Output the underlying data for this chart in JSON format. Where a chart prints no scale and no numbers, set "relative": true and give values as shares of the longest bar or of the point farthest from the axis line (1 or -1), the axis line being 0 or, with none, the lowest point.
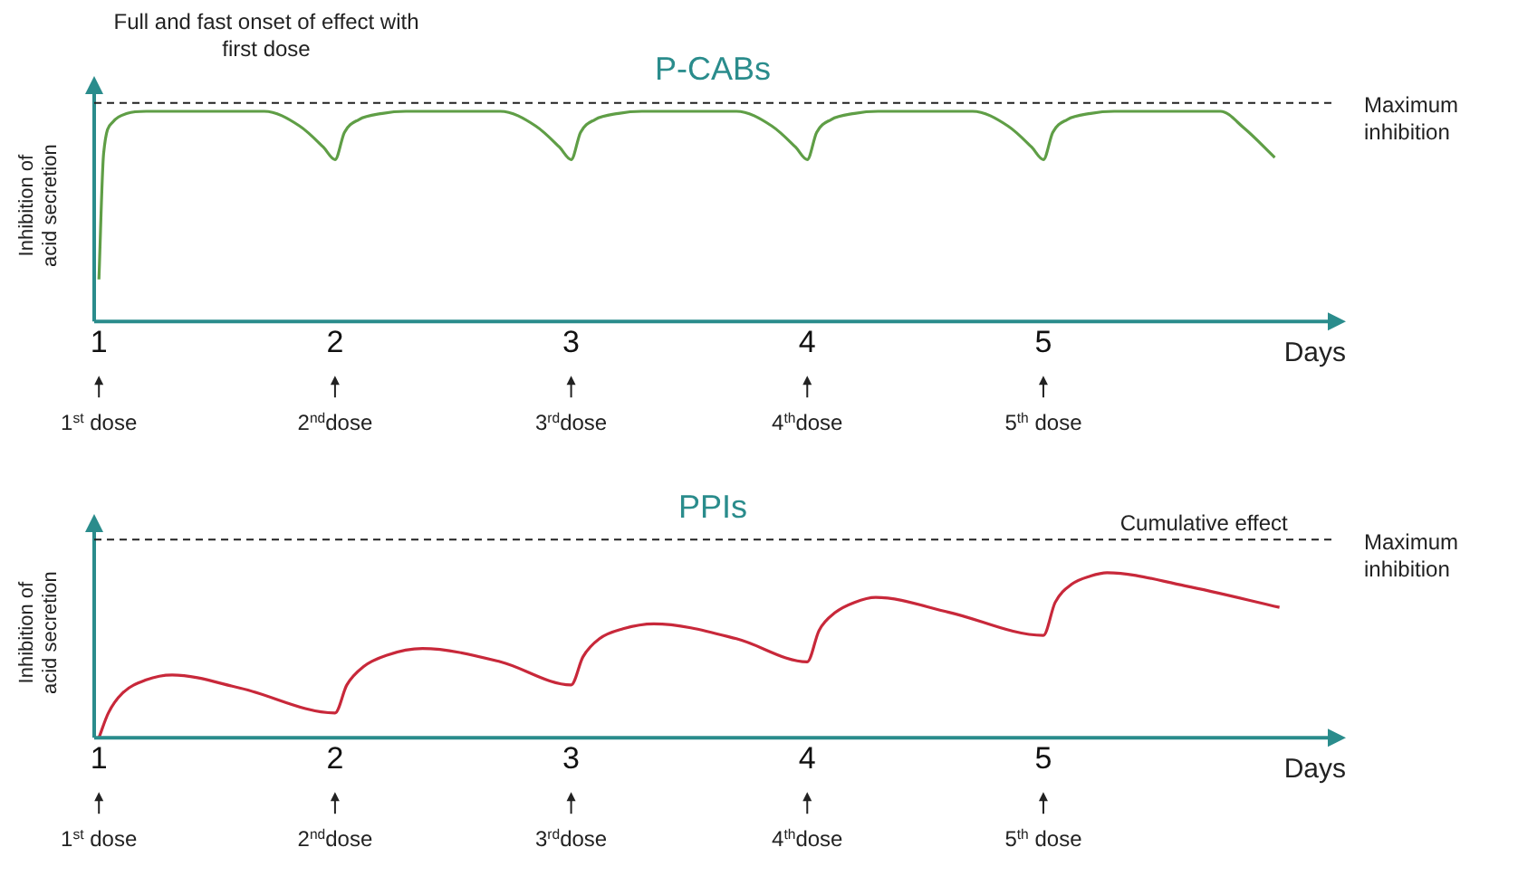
{
  "chart_data": [
    {
      "type": "line",
      "title": "P-CABs",
      "ylabel": "Inhibition of acid secretion",
      "xlabel": "Days",
      "relative": true,
      "xlim": [
        0.98,
        6.22
      ],
      "xticks": [
        1,
        2,
        3,
        4,
        5
      ],
      "grid": false,
      "legend": false,
      "marker": "none",
      "line_style": "solid",
      "series": [
        {
          "color": "#5f9e46",
          "x": [
            1.0,
            1.02,
            1.06,
            1.12,
            1.2,
            1.7,
            1.85,
            1.95,
            2.0,
            2.04,
            2.1,
            2.2,
            2.3,
            2.7,
            2.85,
            2.95,
            3.0,
            3.04,
            3.1,
            3.2,
            3.3,
            3.7,
            3.85,
            3.95,
            4.0,
            4.04,
            4.1,
            4.2,
            4.3,
            4.7,
            4.85,
            4.95,
            5.0,
            5.04,
            5.1,
            5.2,
            5.3,
            5.75,
            5.85,
            5.98
          ],
          "values": [
            0.2,
            0.8,
            0.95,
            0.99,
            1,
            1,
            0.93,
            0.83,
            0.77,
            0.9,
            0.96,
            0.99,
            1,
            1,
            0.93,
            0.83,
            0.77,
            0.9,
            0.96,
            0.99,
            1,
            1,
            0.93,
            0.83,
            0.77,
            0.9,
            0.96,
            0.99,
            1,
            1,
            0.93,
            0.83,
            0.77,
            0.9,
            0.96,
            0.99,
            1,
            1,
            0.92,
            0.78
          ]
        }
      ],
      "ref_lines": [
        {
          "axis": "y",
          "value": 1.04,
          "label": "Maximum inhibition",
          "line_style": "dashed"
        }
      ],
      "annotations": [
        "Full and fast onset of effect with first dose",
        {
          "text": "1$^{st}$ dose",
          "x": 1
        },
        {
          "text": "2$^{nd}$dose",
          "x": 2
        },
        {
          "text": "3$^{rd}$dose",
          "x": 3
        },
        {
          "text": "4$^{th}$dose",
          "x": 4
        },
        {
          "text": "5$^{th}$ dose",
          "x": 5
        }
      ]
    },
    {
      "type": "line",
      "title": "PPIs",
      "ylabel": "Inhibition of acid secretion",
      "xlabel": "Days",
      "relative": true,
      "xlim": [
        0.98,
        6.22
      ],
      "xticks": [
        1,
        2,
        3,
        4,
        5
      ],
      "grid": false,
      "legend": false,
      "marker": "none",
      "line_style": "solid",
      "series": [
        {
          "color": "#c8283a",
          "x": [
            1.0,
            1.04,
            1.1,
            1.2,
            1.31,
            1.6,
            2.0,
            2.05,
            2.12,
            2.22,
            2.37,
            2.7,
            3.0,
            3.05,
            3.12,
            3.22,
            3.35,
            3.7,
            4.0,
            4.05,
            4.12,
            4.2,
            4.29,
            4.6,
            5.0,
            5.05,
            5.12,
            5.2,
            5.27,
            5.6,
            6.0
          ],
          "values": [
            0,
            0.15,
            0.27,
            0.35,
            0.38,
            0.3,
            0.15,
            0.32,
            0.43,
            0.5,
            0.54,
            0.46,
            0.32,
            0.49,
            0.6,
            0.66,
            0.69,
            0.6,
            0.46,
            0.65,
            0.76,
            0.82,
            0.85,
            0.76,
            0.62,
            0.82,
            0.93,
            0.98,
            1,
            0.92,
            0.79
          ]
        }
      ],
      "ref_lines": [
        {
          "axis": "y",
          "value": 1.2,
          "label": "Maximum inhibition",
          "line_style": "dashed"
        }
      ],
      "annotations": [
        {
          "text": "Cumulative effect",
          "x": 5.68,
          "y": 1.2
        },
        {
          "text": "1$^{st}$ dose",
          "x": 1
        },
        {
          "text": "2$^{nd}$dose",
          "x": 2
        },
        {
          "text": "3$^{rd}$dose",
          "x": 3
        },
        {
          "text": "4$^{th}$dose",
          "x": 4
        },
        {
          "text": "5$^{th}$ dose",
          "x": 5
        }
      ]
    }
  ]
}
